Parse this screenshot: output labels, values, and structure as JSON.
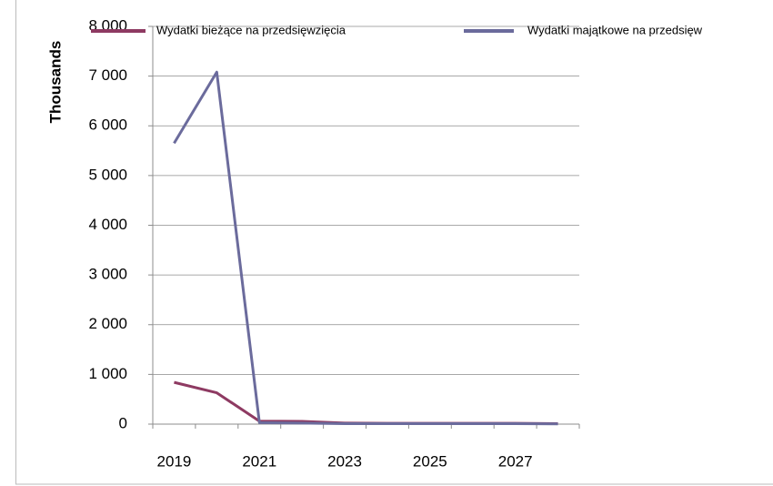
{
  "chart_data": {
    "type": "line",
    "y_label": "Thousands",
    "categories": [
      "2019",
      null,
      "2021",
      null,
      "2023",
      null,
      "2025",
      null,
      "2027",
      null
    ],
    "series": [
      {
        "name": "Wydatki bieżące na przedsięwzięcia",
        "color": "#8e3a62",
        "values": [
          840,
          630,
          60,
          55,
          20,
          15,
          15,
          15,
          15,
          10
        ]
      },
      {
        "name": "Wydatki majątkowe na przedsięw",
        "color": "#6b6b9c",
        "values": [
          5650,
          7080,
          30,
          20,
          10,
          10,
          10,
          10,
          10,
          5
        ]
      }
    ],
    "ylim": [
      0,
      8000
    ],
    "yticks": [
      0,
      {
        "value": 1000,
        "label": "1 000"
      },
      {
        "value": 2000,
        "label": "2 000"
      },
      {
        "value": 3000,
        "label": "3 000"
      },
      {
        "value": 4000,
        "label": "4 000"
      },
      {
        "value": 5000,
        "label": "5 000"
      },
      {
        "value": 6000,
        "label": "6 000"
      },
      {
        "value": 7000,
        "label": "7 000"
      },
      {
        "value": 8000,
        "label": "8 000"
      }
    ],
    "grid": true,
    "legend": "top"
  }
}
